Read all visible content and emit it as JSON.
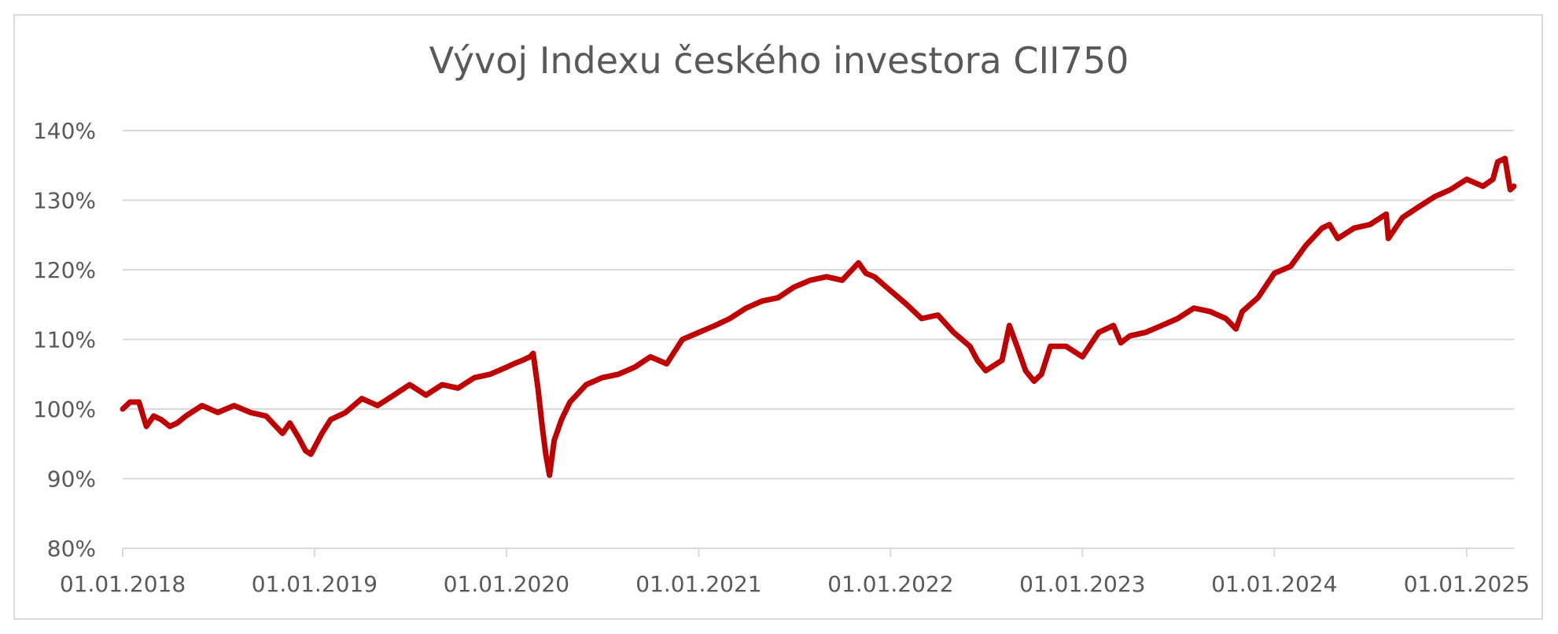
{
  "chart_data": {
    "type": "line",
    "title": "Vývoj Indexu českého investora CII750",
    "xlabel": "",
    "ylabel": "",
    "ylim": [
      0.8,
      1.4
    ],
    "y_ticks": [
      "80%",
      "90%",
      "100%",
      "110%",
      "120%",
      "130%",
      "140%"
    ],
    "x_range": [
      "01.01.2018",
      "01.04.2025"
    ],
    "x_ticks": [
      "01.01.2018",
      "01.01.2019",
      "01.01.2020",
      "01.01.2021",
      "01.01.2022",
      "01.01.2023",
      "01.01.2024",
      "01.01.2025"
    ],
    "grid": true,
    "legend": "none",
    "series": [
      {
        "color": "#c00000",
        "x": [
          "01.01.2018",
          "15.01.2018",
          "01.02.2018",
          "15.02.2018",
          "01.03.2018",
          "15.03.2018",
          "01.04.2018",
          "15.04.2018",
          "01.05.2018",
          "01.06.2018",
          "01.07.2018",
          "01.08.2018",
          "01.09.2018",
          "01.10.2018",
          "01.11.2018",
          "15.11.2018",
          "01.12.2018",
          "15.12.2018",
          "25.12.2018",
          "15.01.2019",
          "01.02.2019",
          "01.03.2019",
          "01.04.2019",
          "01.05.2019",
          "01.06.2019",
          "01.07.2019",
          "01.08.2019",
          "01.09.2019",
          "01.10.2019",
          "01.11.2019",
          "01.12.2019",
          "01.01.2020",
          "15.01.2020",
          "01.02.2020",
          "15.02.2020",
          "21.02.2020",
          "01.03.2020",
          "10.03.2020",
          "16.03.2020",
          "23.03.2020",
          "01.04.2020",
          "15.04.2020",
          "01.05.2020",
          "01.06.2020",
          "01.07.2020",
          "01.08.2020",
          "01.09.2020",
          "01.10.2020",
          "01.11.2020",
          "01.12.2020",
          "01.01.2021",
          "01.02.2021",
          "01.03.2021",
          "01.04.2021",
          "01.05.2021",
          "01.06.2021",
          "01.07.2021",
          "01.08.2021",
          "01.09.2021",
          "01.10.2021",
          "01.11.2021",
          "15.11.2021",
          "01.12.2021",
          "01.01.2022",
          "01.02.2022",
          "01.03.2022",
          "01.04.2022",
          "01.05.2022",
          "01.06.2022",
          "15.06.2022",
          "01.07.2022",
          "01.08.2022",
          "15.08.2022",
          "01.09.2022",
          "15.09.2022",
          "01.10.2022",
          "15.10.2022",
          "01.11.2022",
          "01.12.2022",
          "01.01.2023",
          "01.02.2023",
          "01.03.2023",
          "15.03.2023",
          "01.04.2023",
          "01.05.2023",
          "01.06.2023",
          "01.07.2023",
          "01.08.2023",
          "01.09.2023",
          "01.10.2023",
          "20.10.2023",
          "01.11.2023",
          "01.12.2023",
          "01.01.2024",
          "01.02.2024",
          "01.03.2024",
          "01.04.2024",
          "15.04.2024",
          "01.05.2024",
          "01.06.2024",
          "01.07.2024",
          "01.08.2024",
          "05.08.2024",
          "01.09.2024",
          "01.10.2024",
          "01.11.2024",
          "01.12.2024",
          "01.01.2025",
          "01.02.2025",
          "20.02.2025",
          "01.03.2025",
          "15.03.2025",
          "25.03.2025",
          "01.04.2025"
        ],
        "y": [
          1.0,
          1.01,
          1.01,
          0.975,
          0.99,
          0.985,
          0.975,
          0.98,
          0.99,
          1.005,
          0.995,
          1.005,
          0.995,
          0.99,
          0.965,
          0.98,
          0.96,
          0.94,
          0.935,
          0.965,
          0.985,
          0.995,
          1.015,
          1.005,
          1.02,
          1.035,
          1.02,
          1.035,
          1.03,
          1.045,
          1.05,
          1.06,
          1.065,
          1.07,
          1.075,
          1.08,
          1.03,
          0.97,
          0.935,
          0.905,
          0.955,
          0.985,
          1.01,
          1.035,
          1.045,
          1.05,
          1.06,
          1.075,
          1.065,
          1.1,
          1.11,
          1.12,
          1.13,
          1.145,
          1.155,
          1.16,
          1.175,
          1.185,
          1.19,
          1.185,
          1.21,
          1.195,
          1.19,
          1.17,
          1.15,
          1.13,
          1.135,
          1.11,
          1.09,
          1.07,
          1.055,
          1.07,
          1.12,
          1.085,
          1.055,
          1.04,
          1.05,
          1.09,
          1.09,
          1.075,
          1.11,
          1.12,
          1.095,
          1.105,
          1.11,
          1.12,
          1.13,
          1.145,
          1.14,
          1.13,
          1.115,
          1.14,
          1.16,
          1.195,
          1.205,
          1.235,
          1.26,
          1.265,
          1.245,
          1.26,
          1.265,
          1.28,
          1.245,
          1.275,
          1.29,
          1.305,
          1.315,
          1.33,
          1.32,
          1.33,
          1.355,
          1.36,
          1.315,
          1.32
        ]
      }
    ]
  }
}
